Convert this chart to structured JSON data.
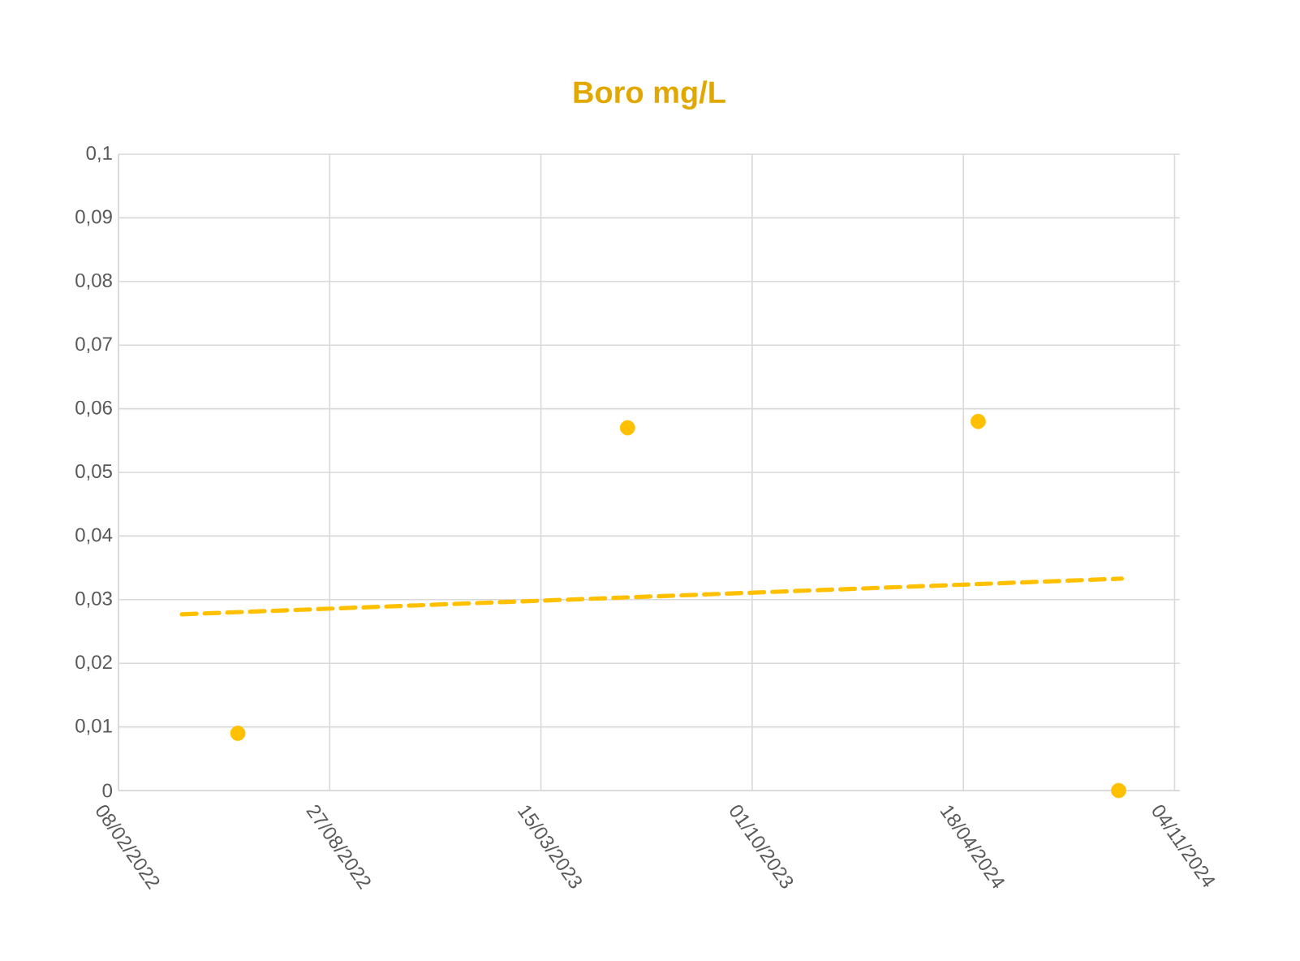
{
  "chart_data": {
    "type": "scatter",
    "title": "Boro mg/L",
    "marker": "circle",
    "grid": true,
    "xlim": [
      "2022-02-08",
      "2024-11-09"
    ],
    "xticks": [
      {
        "value": "2022-02-08",
        "label": "08/02/2022"
      },
      {
        "value": "2022-08-27",
        "label": "27/08/2022"
      },
      {
        "value": "2023-03-15",
        "label": "15/03/2023"
      },
      {
        "value": "2023-10-01",
        "label": "01/10/2023"
      },
      {
        "value": "2024-04-18",
        "label": "18/04/2024"
      },
      {
        "value": "2024-11-04",
        "label": "04/11/2024"
      }
    ],
    "ylim": [
      0,
      0.1
    ],
    "yticks": [
      {
        "value": 0,
        "label": "0"
      },
      {
        "value": 0.01,
        "label": "0,01"
      },
      {
        "value": 0.02,
        "label": "0,02"
      },
      {
        "value": 0.03,
        "label": "0,03"
      },
      {
        "value": 0.04,
        "label": "0,04"
      },
      {
        "value": 0.05,
        "label": "0,05"
      },
      {
        "value": 0.06,
        "label": "0,06"
      },
      {
        "value": 0.07,
        "label": "0,07"
      },
      {
        "value": 0.08,
        "label": "0,08"
      },
      {
        "value": 0.09,
        "label": "0,09"
      },
      {
        "value": 0.1,
        "label": "0,1"
      }
    ],
    "series": [
      {
        "color": "#ffc000",
        "x": [
          "2022-06-01",
          "2023-06-05",
          "2024-05-02",
          "2024-09-12"
        ],
        "values": [
          0.009,
          0.057,
          0.058,
          0
        ]
      },
      {
        "type": "line",
        "color": "#ffc000",
        "line_style": "dashed",
        "marker": "none",
        "x": [
          "2022-04-09",
          "2024-09-15"
        ],
        "values": [
          0.0277,
          0.0333
        ]
      }
    ]
  }
}
